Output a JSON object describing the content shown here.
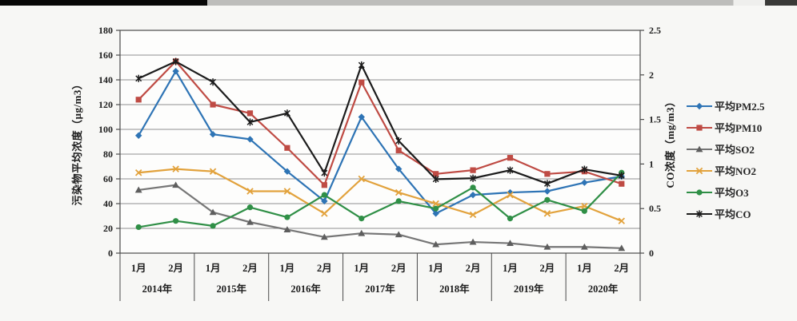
{
  "chart_data": {
    "type": "line",
    "title": "",
    "month_labels": [
      "1月",
      "2月",
      "1月",
      "2月",
      "1月",
      "2月",
      "1月",
      "2月",
      "1月",
      "2月",
      "1月",
      "2月",
      "1月",
      "2月"
    ],
    "year_labels": [
      "2014年",
      "2015年",
      "2016年",
      "2017年",
      "2018年",
      "2019年",
      "2020年"
    ],
    "left_axis": {
      "title": "污染物平均浓度（μg/m3）",
      "min": 0,
      "max": 180,
      "step": 20,
      "tick_labels": [
        "0",
        "20",
        "40",
        "60",
        "80",
        "100",
        "120",
        "140",
        "160",
        "180"
      ]
    },
    "right_axis": {
      "title": "CO浓度（mg/m3）",
      "min": 0,
      "max": 2.5,
      "step": 0.5,
      "tick_labels": [
        "0",
        "0.5",
        "1",
        "1.5",
        "2",
        "2.5"
      ]
    },
    "grid": true,
    "legend_position": "right",
    "series": [
      {
        "name": "平均PM2.5",
        "color": "#2e74b5",
        "marker": "diamond",
        "axis": "left",
        "values": [
          95,
          147,
          96,
          92,
          66,
          42,
          110,
          68,
          32,
          47,
          49,
          50,
          57,
          62
        ]
      },
      {
        "name": "平均PM10",
        "color": "#bf4b44",
        "marker": "square",
        "axis": "left",
        "values": [
          124,
          155,
          120,
          113,
          85,
          55,
          138,
          83,
          64,
          67,
          77,
          64,
          66,
          56
        ]
      },
      {
        "name": "平均SO2",
        "color": "#767676",
        "marker": "triangle",
        "axis": "left",
        "values": [
          51,
          55,
          33,
          25,
          19,
          13,
          16,
          15,
          7,
          9,
          8,
          5,
          5,
          4
        ]
      },
      {
        "name": "平均NO2",
        "color": "#e2a23c",
        "marker": "xcross",
        "axis": "left",
        "values": [
          65,
          68,
          66,
          50,
          50,
          32,
          60,
          49,
          40,
          31,
          47,
          32,
          38,
          26
        ]
      },
      {
        "name": "平均O3",
        "color": "#2f8f46",
        "marker": "circle",
        "axis": "left",
        "values": [
          21,
          26,
          22,
          37,
          29,
          47,
          28,
          42,
          36,
          53,
          28,
          43,
          34,
          65
        ]
      },
      {
        "name": "平均CO",
        "color": "#1c1c1c",
        "marker": "star",
        "axis": "right",
        "values": [
          1.96,
          2.15,
          1.92,
          1.47,
          1.57,
          0.9,
          2.11,
          1.26,
          0.83,
          0.84,
          0.93,
          0.78,
          0.94,
          0.87
        ]
      }
    ]
  }
}
